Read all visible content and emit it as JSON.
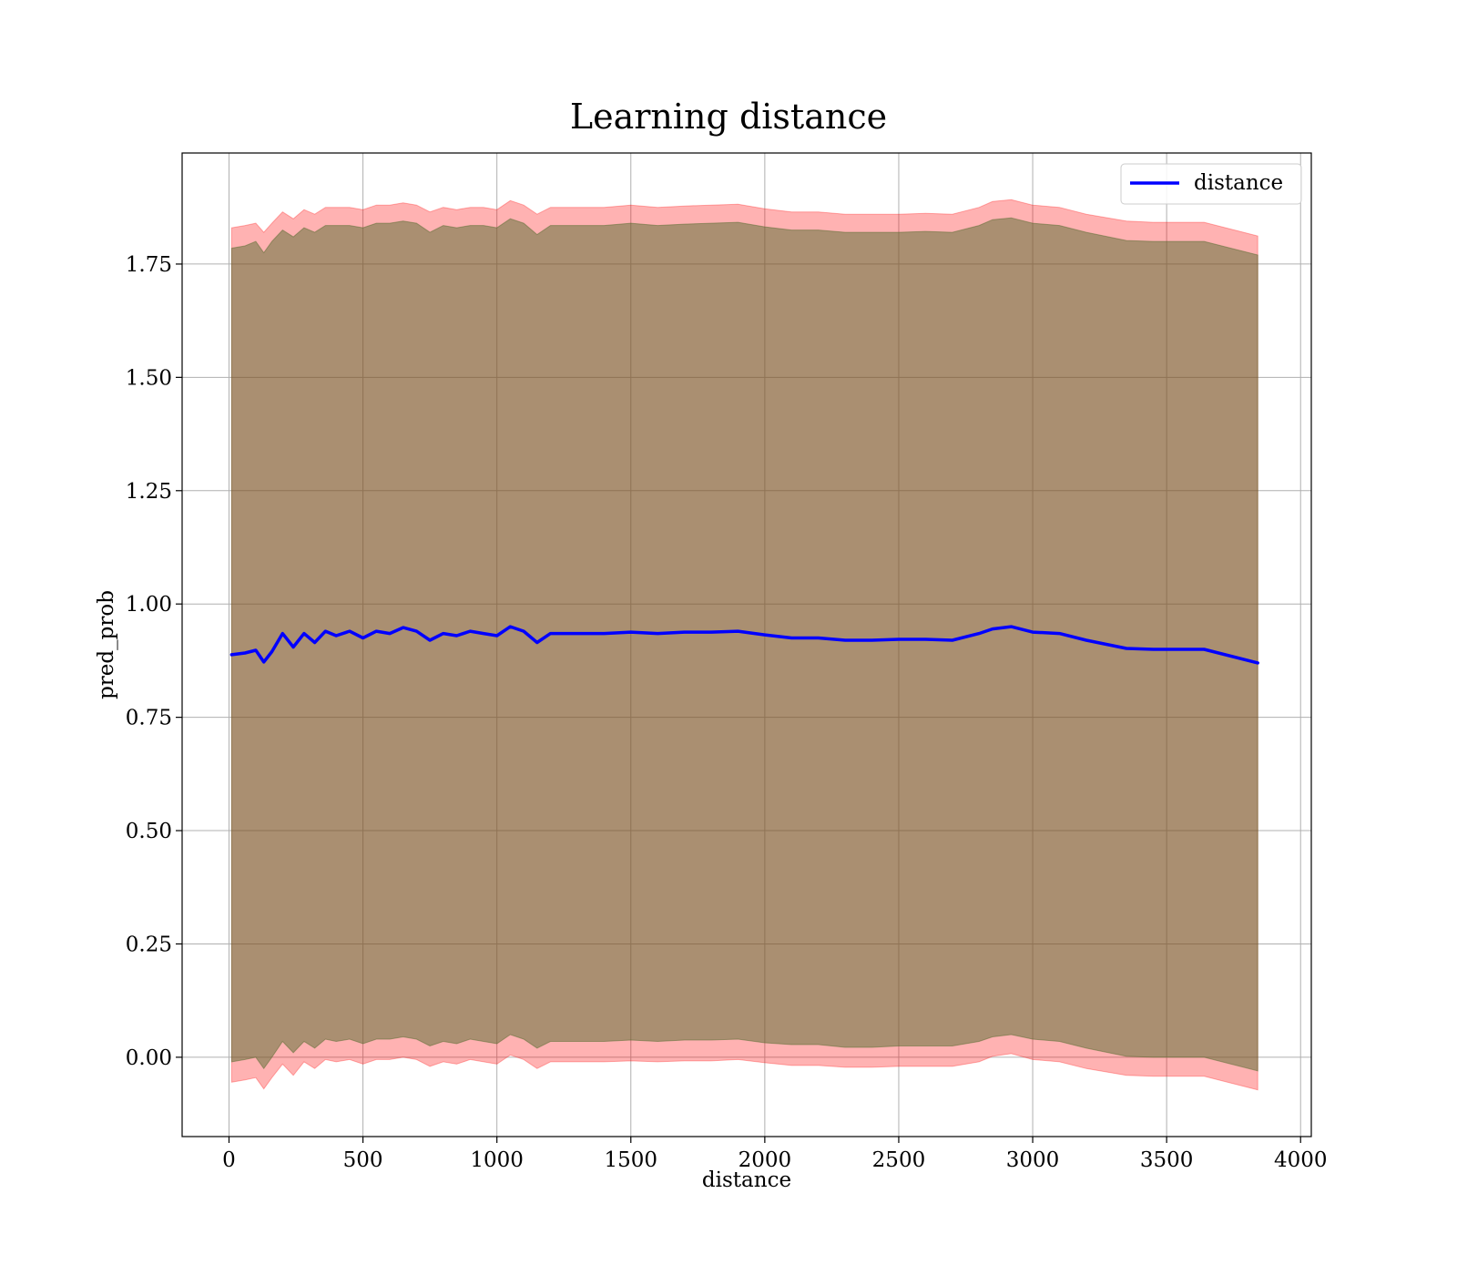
{
  "chart_data": {
    "type": "line",
    "title": "Learning distance",
    "xlabel": "distance",
    "ylabel": "pred_prob",
    "xlim": [
      -175,
      4040
    ],
    "ylim": [
      -0.175,
      1.995
    ],
    "xticks": [
      "0",
      "500",
      "1000",
      "1500",
      "2000",
      "2500",
      "3000",
      "3500",
      "4000"
    ],
    "yticks": [
      "0.00",
      "0.25",
      "0.50",
      "0.75",
      "1.00",
      "1.25",
      "1.50",
      "1.75"
    ],
    "grid": true,
    "legend_position": "top-right",
    "colors": {
      "line": "#0000ff",
      "outer_band": "#ff0000",
      "inner_band": "#556b2f"
    },
    "series": [
      {
        "name": "distance",
        "x": [
          10,
          60,
          100,
          130,
          160,
          200,
          240,
          280,
          320,
          360,
          400,
          450,
          500,
          550,
          600,
          650,
          700,
          750,
          800,
          850,
          900,
          950,
          1000,
          1050,
          1100,
          1150,
          1200,
          1300,
          1400,
          1500,
          1600,
          1700,
          1800,
          1900,
          2000,
          2100,
          2200,
          2300,
          2400,
          2500,
          2600,
          2700,
          2800,
          2850,
          2920,
          3000,
          3100,
          3200,
          3350,
          3450,
          3640,
          3840
        ],
        "y": [
          0.888,
          0.892,
          0.898,
          0.872,
          0.895,
          0.935,
          0.905,
          0.935,
          0.915,
          0.94,
          0.93,
          0.94,
          0.925,
          0.94,
          0.935,
          0.948,
          0.94,
          0.92,
          0.935,
          0.93,
          0.94,
          0.935,
          0.93,
          0.95,
          0.94,
          0.915,
          0.935,
          0.935,
          0.935,
          0.938,
          0.935,
          0.938,
          0.938,
          0.94,
          0.932,
          0.925,
          0.925,
          0.92,
          0.92,
          0.922,
          0.922,
          0.92,
          0.935,
          0.945,
          0.95,
          0.938,
          0.935,
          0.92,
          0.902,
          0.9,
          0.9,
          0.87
        ],
        "outer_upper": [
          1.83,
          1.835,
          1.84,
          1.82,
          1.84,
          1.865,
          1.85,
          1.87,
          1.86,
          1.875,
          1.875,
          1.875,
          1.87,
          1.88,
          1.88,
          1.885,
          1.88,
          1.865,
          1.875,
          1.87,
          1.875,
          1.875,
          1.87,
          1.89,
          1.88,
          1.86,
          1.875,
          1.875,
          1.875,
          1.88,
          1.875,
          1.878,
          1.88,
          1.882,
          1.872,
          1.865,
          1.865,
          1.86,
          1.86,
          1.86,
          1.862,
          1.86,
          1.875,
          1.888,
          1.892,
          1.88,
          1.875,
          1.86,
          1.845,
          1.842,
          1.842,
          1.812
        ],
        "inner_upper": [
          1.785,
          1.79,
          1.8,
          1.775,
          1.8,
          1.825,
          1.81,
          1.83,
          1.82,
          1.835,
          1.835,
          1.835,
          1.83,
          1.84,
          1.84,
          1.845,
          1.84,
          1.82,
          1.835,
          1.83,
          1.835,
          1.835,
          1.83,
          1.85,
          1.84,
          1.815,
          1.835,
          1.835,
          1.835,
          1.84,
          1.835,
          1.838,
          1.84,
          1.842,
          1.832,
          1.825,
          1.825,
          1.82,
          1.82,
          1.82,
          1.822,
          1.82,
          1.835,
          1.848,
          1.852,
          1.84,
          1.835,
          1.82,
          1.802,
          1.8,
          1.8,
          1.77
        ],
        "inner_lower": [
          -0.01,
          -0.005,
          0.0,
          -0.025,
          0.0,
          0.035,
          0.01,
          0.035,
          0.02,
          0.04,
          0.035,
          0.04,
          0.03,
          0.04,
          0.04,
          0.045,
          0.04,
          0.025,
          0.035,
          0.03,
          0.04,
          0.035,
          0.03,
          0.05,
          0.04,
          0.02,
          0.035,
          0.035,
          0.035,
          0.038,
          0.035,
          0.038,
          0.038,
          0.04,
          0.032,
          0.028,
          0.028,
          0.022,
          0.022,
          0.025,
          0.025,
          0.025,
          0.035,
          0.045,
          0.05,
          0.04,
          0.035,
          0.02,
          0.002,
          0.0,
          0.0,
          -0.03
        ],
        "outer_lower": [
          -0.055,
          -0.05,
          -0.045,
          -0.07,
          -0.045,
          -0.015,
          -0.04,
          -0.01,
          -0.025,
          -0.005,
          -0.01,
          -0.005,
          -0.015,
          -0.005,
          -0.005,
          0.0,
          -0.005,
          -0.02,
          -0.01,
          -0.015,
          -0.005,
          -0.01,
          -0.015,
          0.005,
          -0.005,
          -0.025,
          -0.01,
          -0.01,
          -0.01,
          -0.008,
          -0.01,
          -0.008,
          -0.008,
          -0.005,
          -0.012,
          -0.018,
          -0.018,
          -0.022,
          -0.022,
          -0.02,
          -0.02,
          -0.02,
          -0.01,
          0.002,
          0.008,
          -0.005,
          -0.01,
          -0.025,
          -0.04,
          -0.042,
          -0.042,
          -0.072
        ]
      }
    ]
  }
}
